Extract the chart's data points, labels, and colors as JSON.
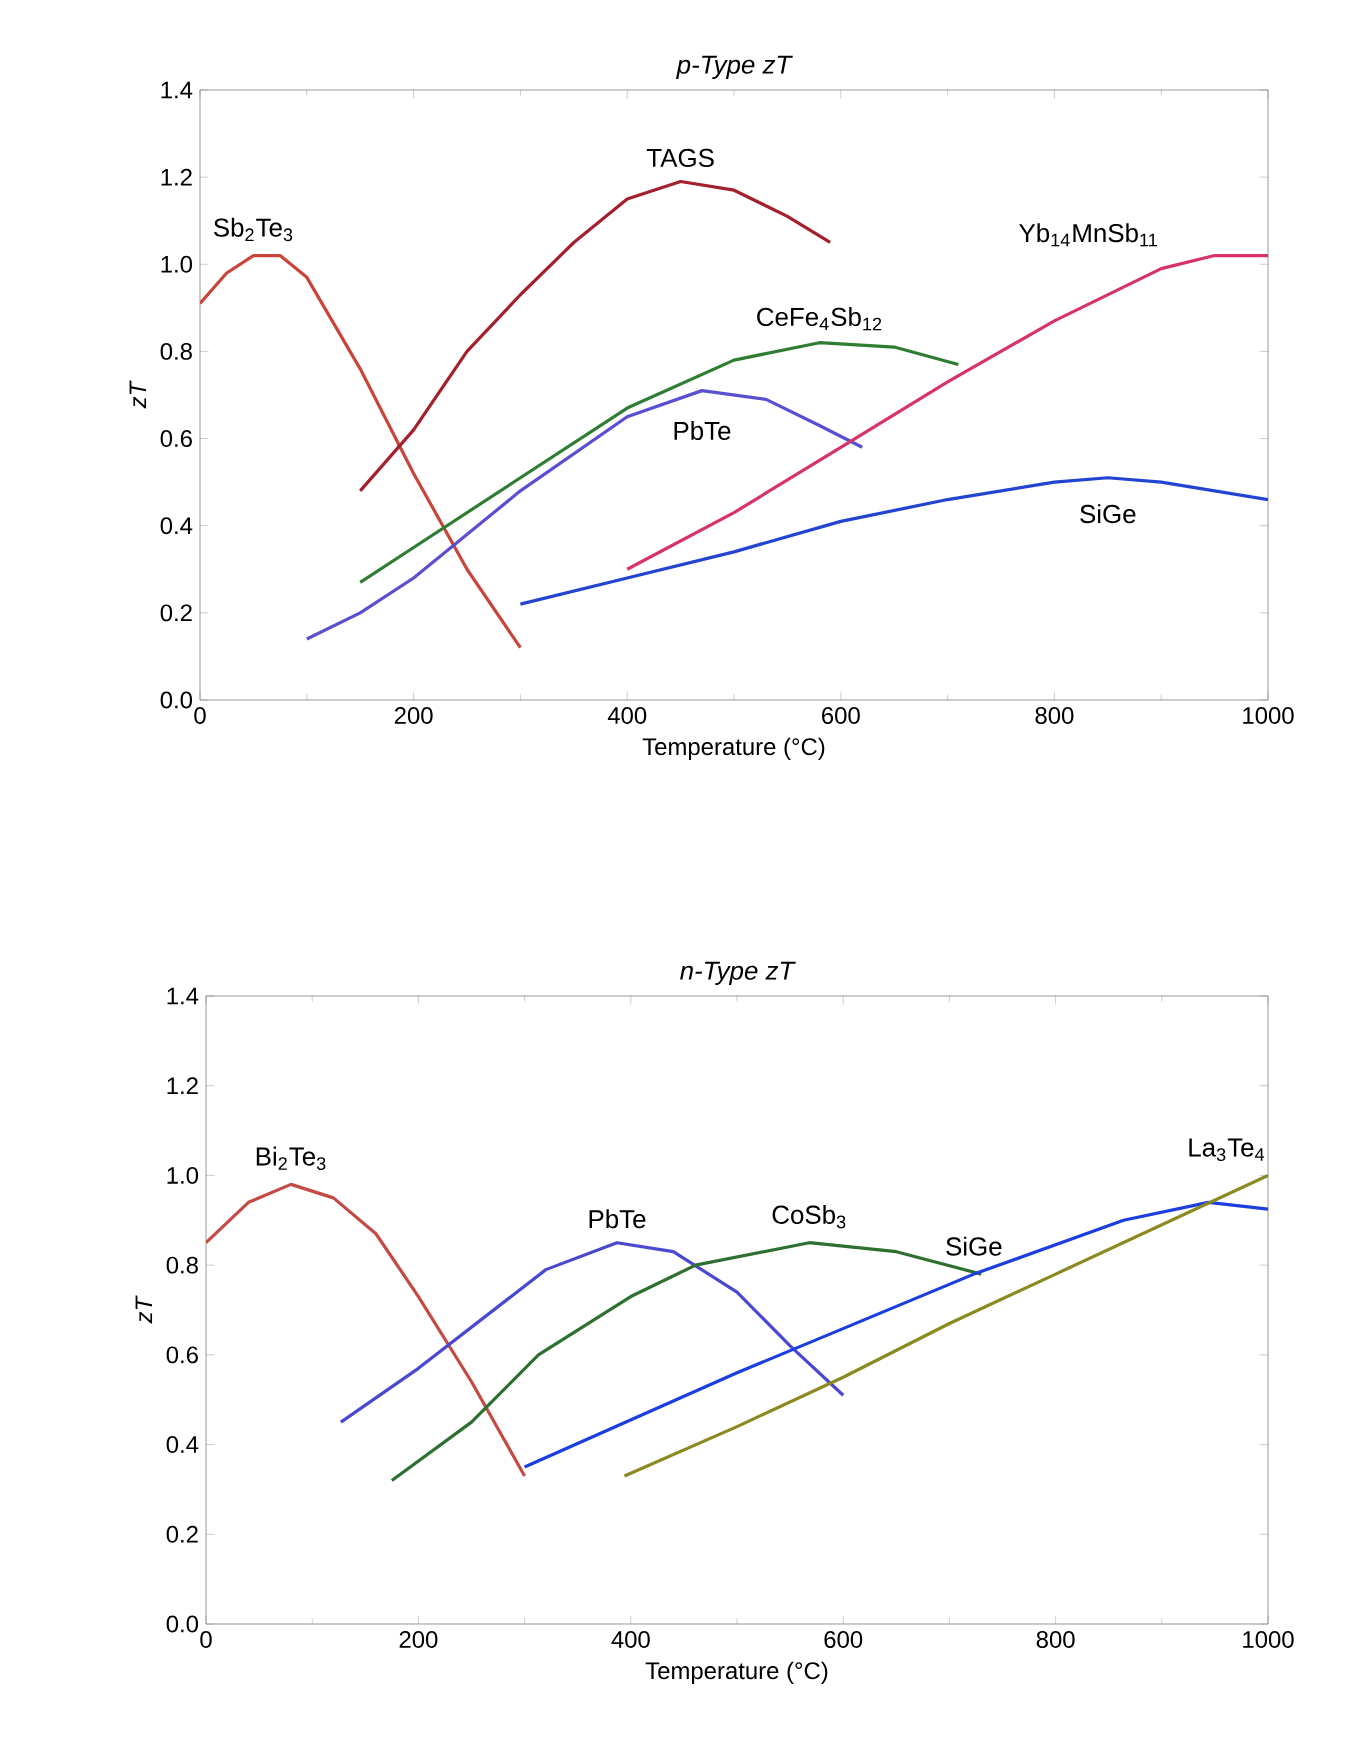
{
  "chart_data": [
    {
      "type": "line",
      "title": "p-Type  zT",
      "xlabel": "Temperature (°C)",
      "ylabel": "zT",
      "xlim": [
        0,
        1000
      ],
      "ylim": [
        0,
        1.4
      ],
      "xticks": [
        0,
        200,
        400,
        600,
        800,
        1000
      ],
      "yticks": [
        {
          "value": 0,
          "label": "0.0"
        },
        {
          "value": 0.2,
          "label": "0.2"
        },
        {
          "value": 0.4,
          "label": "0.4"
        },
        {
          "value": 0.6,
          "label": "0.6"
        },
        {
          "value": 0.8,
          "label": "0.8"
        },
        {
          "value": 1.0,
          "label": "1.0"
        },
        {
          "value": 1.2,
          "label": "1.2"
        },
        {
          "value": 1.4,
          "label": "1.4"
        }
      ],
      "grid": false,
      "marker": "none",
      "line_style": "solid",
      "series": [
        {
          "name": "Sb$_{2}$Te$_{3}$",
          "color": "#c8453a",
          "x": [
            0,
            25,
            50,
            75,
            100,
            150,
            200,
            250,
            300
          ],
          "values": [
            0.91,
            0.98,
            1.02,
            1.02,
            0.97,
            0.76,
            0.52,
            0.3,
            0.12
          ]
        },
        {
          "name": "TAGS",
          "color": "#a3202e",
          "x": [
            150,
            200,
            250,
            300,
            350,
            400,
            450,
            500,
            550,
            590
          ],
          "values": [
            0.48,
            0.62,
            0.8,
            0.93,
            1.05,
            1.15,
            1.19,
            1.17,
            1.11,
            1.05
          ]
        },
        {
          "name": "CeFe$_{4}$Sb$_{12}$",
          "color": "#2e7d32",
          "x": [
            150,
            200,
            300,
            400,
            500,
            580,
            650,
            710
          ],
          "values": [
            0.27,
            0.35,
            0.51,
            0.67,
            0.78,
            0.82,
            0.81,
            0.77
          ]
        },
        {
          "name": "PbTe",
          "color": "#5a4fd0",
          "x": [
            100,
            150,
            200,
            300,
            400,
            470,
            530,
            580,
            620
          ],
          "values": [
            0.14,
            0.2,
            0.28,
            0.48,
            0.65,
            0.71,
            0.69,
            0.63,
            0.58
          ]
        },
        {
          "name": "Yb$_{14}$MnSb$_{11}$",
          "color": "#d6336a",
          "x": [
            400,
            500,
            600,
            700,
            800,
            900,
            950,
            1000
          ],
          "values": [
            0.3,
            0.43,
            0.58,
            0.73,
            0.87,
            0.99,
            1.02,
            1.02
          ]
        },
        {
          "name": "SiGe",
          "color": "#2244d0",
          "x": [
            300,
            400,
            500,
            600,
            700,
            800,
            850,
            900,
            1000
          ],
          "values": [
            0.22,
            0.28,
            0.34,
            0.41,
            0.46,
            0.5,
            0.51,
            0.5,
            0.46
          ]
        }
      ]
    },
    {
      "type": "line",
      "title": "n-Type zT",
      "xlabel": "Temperature (°C)",
      "ylabel": "zT",
      "xlim": [
        0,
        1000
      ],
      "ylim": [
        0,
        1.4
      ],
      "xticks": [
        0,
        200,
        400,
        600,
        800,
        1000
      ],
      "yticks": [
        {
          "value": 0,
          "label": "0.0"
        },
        {
          "value": 0.2,
          "label": "0.2"
        },
        {
          "value": 0.4,
          "label": "0.4"
        },
        {
          "value": 0.6,
          "label": "0.6"
        },
        {
          "value": 0.8,
          "label": "0.8"
        },
        {
          "value": 1.0,
          "label": "1.0"
        },
        {
          "value": 1.2,
          "label": "1.2"
        },
        {
          "value": 1.4,
          "label": "1.4"
        }
      ],
      "grid": false,
      "marker": "none",
      "line_style": "solid",
      "series": [
        {
          "name": "Bi$_{2}$Te$_{3}$",
          "color": "#c44a44",
          "x": [
            0,
            40,
            80,
            120,
            160,
            200,
            250,
            300
          ],
          "values": [
            0.85,
            0.94,
            0.98,
            0.95,
            0.87,
            0.73,
            0.54,
            0.33
          ]
        },
        {
          "name": "PbTe",
          "color": "#4a48d0",
          "x": [
            127,
            200,
            260,
            320,
            387,
            440,
            500,
            550,
            600
          ],
          "values": [
            0.45,
            0.57,
            0.68,
            0.79,
            0.85,
            0.83,
            0.74,
            0.62,
            0.51
          ]
        },
        {
          "name": "CoSb$_{3}$",
          "color": "#2e7030",
          "x": [
            175,
            250,
            313,
            400,
            461,
            568,
            650,
            730
          ],
          "values": [
            0.32,
            0.45,
            0.6,
            0.73,
            0.8,
            0.85,
            0.83,
            0.78
          ]
        },
        {
          "name": "SiGe",
          "color": "#1a3ee0",
          "x": [
            300,
            500,
            723,
            864,
            944,
            1000
          ],
          "values": [
            0.35,
            0.56,
            0.78,
            0.9,
            0.94,
            0.925
          ]
        },
        {
          "name": "La$_{3}$Te$_{4}$",
          "color": "#8a8a20",
          "x": [
            394,
            500,
            600,
            700,
            800,
            900,
            1000
          ],
          "values": [
            0.33,
            0.44,
            0.55,
            0.67,
            0.78,
            0.89,
            1.0
          ]
        }
      ]
    }
  ]
}
